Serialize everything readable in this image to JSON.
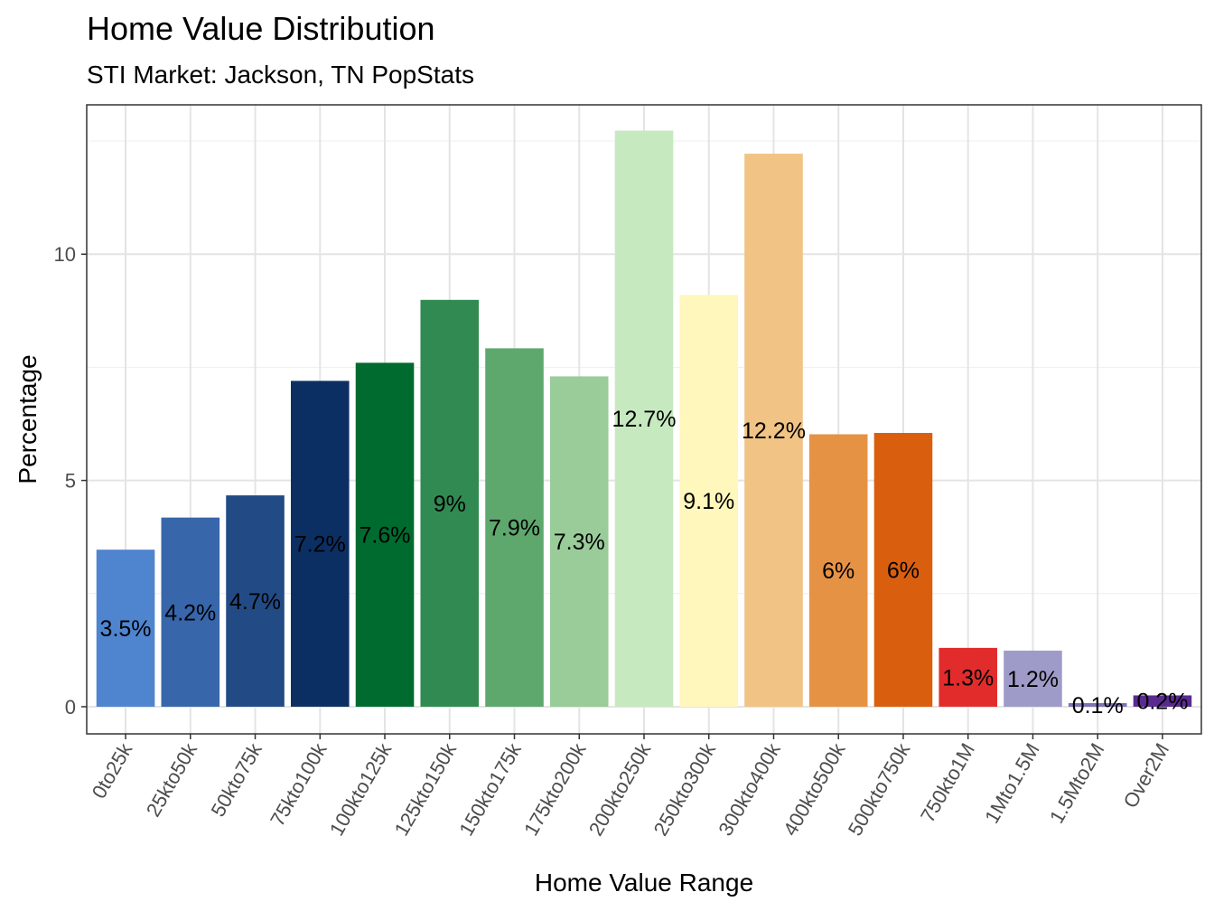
{
  "chart_data": {
    "type": "bar",
    "title": "Home Value Distribution",
    "subtitle": "STI Market: Jackson, TN PopStats",
    "xlabel": "Home Value Range",
    "ylabel": "Percentage",
    "ylim": [
      -0.6,
      13.3
    ],
    "yticks": [
      0,
      5,
      10
    ],
    "ytick_labels": [
      "0",
      "5",
      "10"
    ],
    "grid": true,
    "categories": [
      "0to25k",
      "25kto50k",
      "50kto75k",
      "75kto100k",
      "100kto125k",
      "125kto150k",
      "150kto175k",
      "175kto200k",
      "200kto250k",
      "250kto300k",
      "300kto400k",
      "400kto500k",
      "500kto750k",
      "750kto1M",
      "1Mto1.5M",
      "1.5Mto2M",
      "Over2M"
    ],
    "values": [
      3.47,
      4.18,
      4.67,
      7.2,
      7.6,
      8.99,
      7.92,
      7.3,
      12.73,
      9.1,
      12.22,
      6.02,
      6.05,
      1.3,
      1.24,
      0.08,
      0.25
    ],
    "labels": [
      "3.5%",
      "4.2%",
      "4.7%",
      "7.2%",
      "7.6%",
      "9%",
      "7.9%",
      "7.3%",
      "12.7%",
      "9.1%",
      "12.2%",
      "6%",
      "6%",
      "1.3%",
      "1.2%",
      "0.1%",
      "0.2%"
    ],
    "colors": [
      "#4f84cf",
      "#3766ab",
      "#224b86",
      "#0c2f63",
      "#006b2f",
      "#318a51",
      "#5ea86d",
      "#99cc99",
      "#c7e9c0",
      "#fff7bc",
      "#f1c384",
      "#e69245",
      "#d95f0e",
      "#e22c2c",
      "#9f9bc9",
      "#7d72b4",
      "#5a2a90"
    ]
  }
}
